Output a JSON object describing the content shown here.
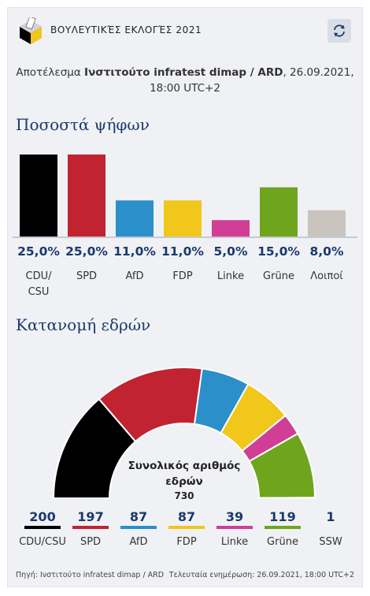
{
  "header": {
    "title": "ΒΟΥΛΕΥΤΙΚΈΣ ΕΚΛΟΓΈΣ 2021"
  },
  "subtitle": {
    "prefix": "Αποτέλεσμα ",
    "source": "Ινστιτούτο infratest dimap / ARD",
    "datetime": ", 26.09.2021, 18:00 UTC+2"
  },
  "sections": {
    "votes_title": "Ποσοστά ψήφων",
    "seats_title": "Κατανομή εδρών"
  },
  "total": {
    "label": "Συνολικός αριθμός εδρών",
    "value": "730"
  },
  "footer": {
    "source": "Πηγή: Ινστιτούτο infratest dimap / ARD",
    "updated": "Τελευταία ενημέρωση: 26.09.2021, 18:00 UTC+2"
  },
  "chart_data": [
    {
      "type": "bar",
      "title": "Ποσοστά ψήφων",
      "categories": [
        "CDU/ CSU",
        "SPD",
        "AfD",
        "FDP",
        "Linke",
        "Grüne",
        "Λοιποί"
      ],
      "values": [
        25.0,
        25.0,
        11.0,
        11.0,
        5.0,
        15.0,
        8.0
      ],
      "value_labels": [
        "25,0%",
        "25,0%",
        "11,0%",
        "11,0%",
        "5,0%",
        "15,0%",
        "8,0%"
      ],
      "colors": [
        "#000000",
        "#c12330",
        "#2b8fc9",
        "#f0c71a",
        "#d13e95",
        "#6ea51c",
        "#c9c4be"
      ],
      "ylim": [
        0,
        25
      ]
    },
    {
      "type": "pie",
      "title": "Κατανομή εδρών",
      "categories": [
        "CDU/CSU",
        "SPD",
        "AfD",
        "FDP",
        "Linke",
        "Grüne",
        "SSW"
      ],
      "values": [
        200,
        197,
        87,
        87,
        39,
        119,
        1
      ],
      "colors": [
        "#000000",
        "#c12330",
        "#2b8fc9",
        "#f0c71a",
        "#d13e95",
        "#6ea51c",
        "#1d4f8c"
      ],
      "total": 730
    }
  ]
}
